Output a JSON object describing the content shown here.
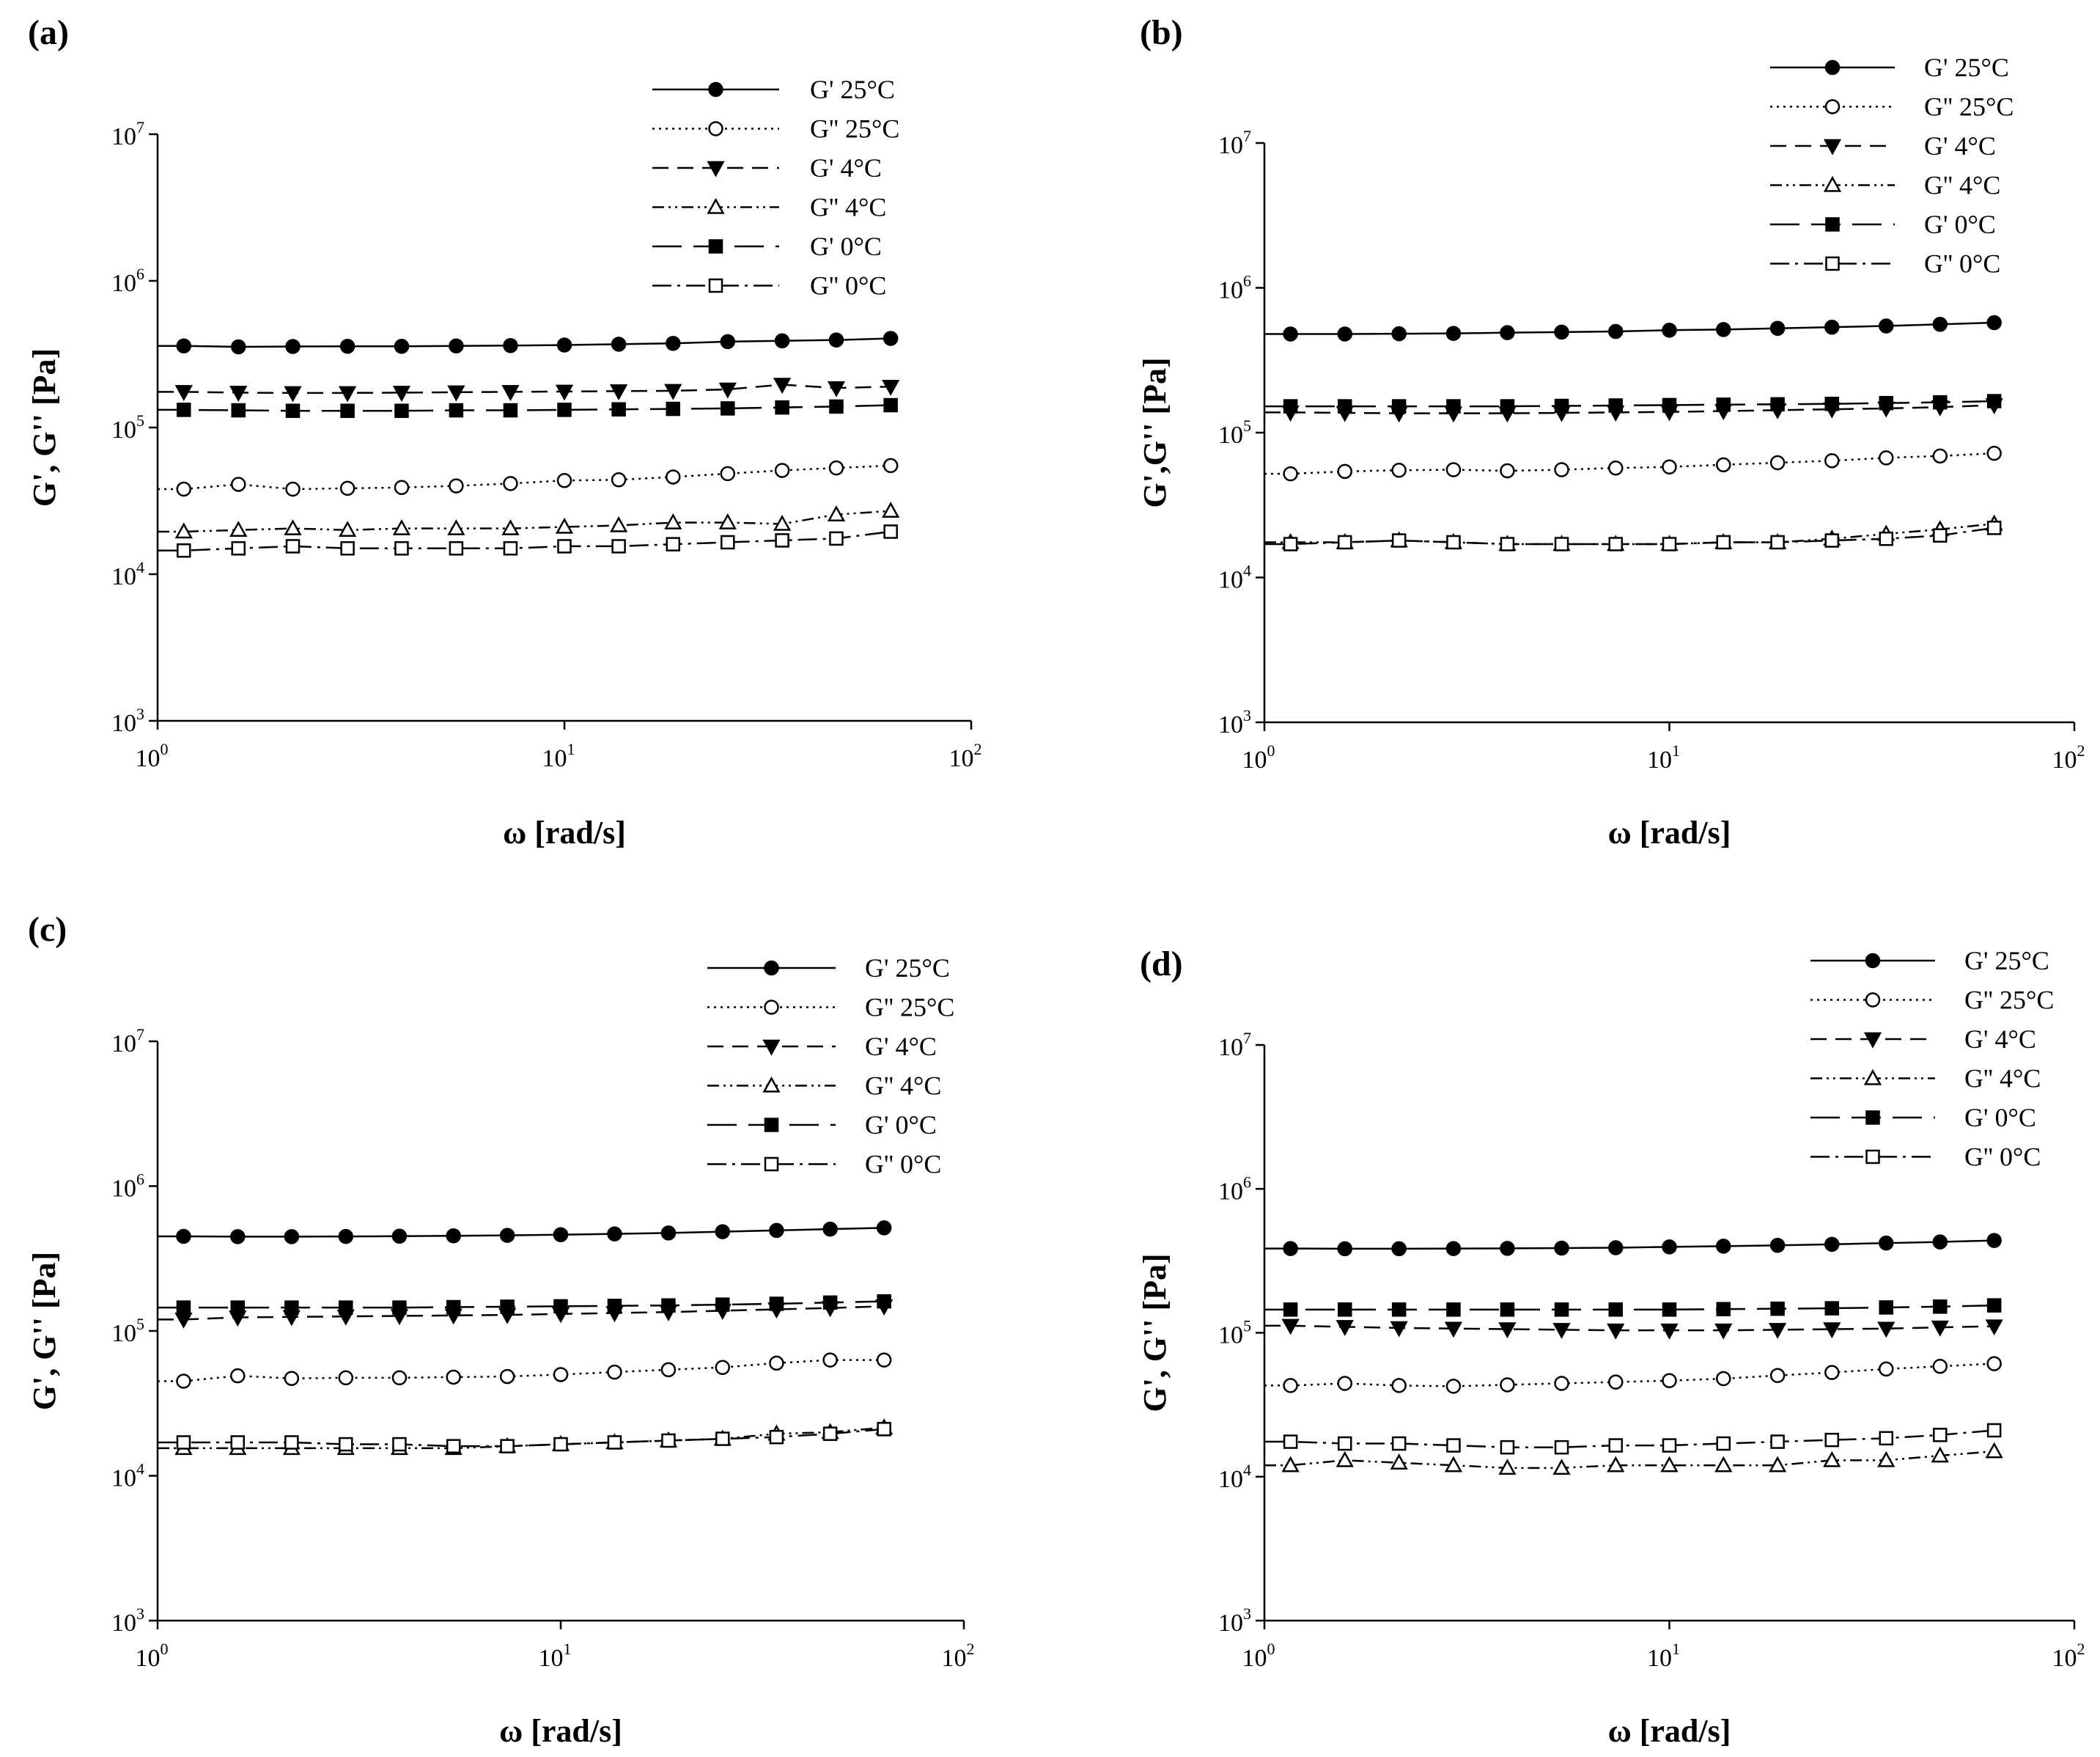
{
  "chart_data": [
    {
      "panel": "(a)",
      "type": "line",
      "xscale": "log",
      "yscale": "log",
      "xlim": [
        1,
        100
      ],
      "ylim": [
        1000,
        10000000
      ],
      "xlabel": "ω [rad/s]",
      "ylabel": "G', G'' [Pa]",
      "xticks": [
        {
          "base": "10",
          "exp": "0"
        },
        {
          "base": "10",
          "exp": "1"
        },
        {
          "base": "10",
          "exp": "2"
        }
      ],
      "yticks": [
        {
          "base": "10",
          "exp": "3"
        },
        {
          "base": "10",
          "exp": "4"
        },
        {
          "base": "10",
          "exp": "5"
        },
        {
          "base": "10",
          "exp": "6"
        },
        {
          "base": "10",
          "exp": "7"
        }
      ],
      "legend_position": "top-right",
      "x": [
        1.16,
        1.58,
        2.15,
        2.93,
        3.98,
        5.42,
        7.37,
        10.0,
        13.6,
        18.5,
        25.2,
        34.3,
        46.6,
        63.4
      ],
      "series": [
        {
          "name": "G' 25°C",
          "values": [
            360000,
            355000,
            357000,
            358000,
            358000,
            360000,
            362000,
            365000,
            370000,
            375000,
            385000,
            390000,
            395000,
            405000
          ]
        },
        {
          "name": "G'' 25°C",
          "values": [
            38000,
            41000,
            38000,
            38500,
            39000,
            40000,
            41500,
            43500,
            44000,
            46000,
            48500,
            51000,
            53000,
            55000
          ]
        },
        {
          "name": "G' 4°C",
          "values": [
            175000,
            173000,
            172000,
            172000,
            173000,
            174000,
            175000,
            176000,
            177000,
            178000,
            182000,
            196000,
            186000,
            190000
          ]
        },
        {
          "name": "G'' 4°C",
          "values": [
            19500,
            20000,
            20500,
            20000,
            20500,
            20500,
            20500,
            21000,
            21500,
            22500,
            22500,
            22000,
            25500,
            27000
          ]
        },
        {
          "name": "G' 0°C",
          "values": [
            132000,
            131000,
            130000,
            130000,
            130000,
            131000,
            131000,
            132000,
            133000,
            134000,
            135000,
            137000,
            139000,
            142000
          ]
        },
        {
          "name": "G'' 0°C",
          "values": [
            14500,
            15000,
            15500,
            15000,
            15000,
            15000,
            15000,
            15500,
            15500,
            16000,
            16500,
            17000,
            17500,
            19500
          ]
        }
      ]
    },
    {
      "panel": "(b)",
      "type": "line",
      "xscale": "log",
      "yscale": "log",
      "xlim": [
        1,
        100
      ],
      "ylim": [
        1000,
        10000000
      ],
      "xlabel": "ω [rad/s]",
      "ylabel": "G',G'' [Pa]",
      "xticks": [
        {
          "base": "10",
          "exp": "0"
        },
        {
          "base": "10",
          "exp": "1"
        },
        {
          "base": "10",
          "exp": "2"
        }
      ],
      "yticks": [
        {
          "base": "10",
          "exp": "3"
        },
        {
          "base": "10",
          "exp": "4"
        },
        {
          "base": "10",
          "exp": "5"
        },
        {
          "base": "10",
          "exp": "6"
        },
        {
          "base": "10",
          "exp": "7"
        }
      ],
      "legend_position": "top-right",
      "x": [
        1.16,
        1.58,
        2.15,
        2.93,
        3.98,
        5.42,
        7.37,
        10.0,
        13.6,
        18.5,
        25.2,
        34.3,
        46.6,
        63.4
      ],
      "series": [
        {
          "name": "G' 25°C",
          "values": [
            480000,
            480000,
            482000,
            485000,
            490000,
            495000,
            500000,
            510000,
            515000,
            525000,
            535000,
            545000,
            560000,
            575000
          ]
        },
        {
          "name": "G'' 25°C",
          "values": [
            52000,
            54000,
            55000,
            55500,
            54500,
            55500,
            57000,
            58000,
            60000,
            62000,
            64000,
            67000,
            69000,
            72000
          ]
        },
        {
          "name": "G' 4°C",
          "values": [
            138000,
            137000,
            136000,
            136000,
            136000,
            137000,
            138000,
            139000,
            141000,
            143000,
            145000,
            147000,
            150000,
            155000
          ]
        },
        {
          "name": "G'' 4°C",
          "values": [
            17500,
            17500,
            18000,
            17500,
            17000,
            17000,
            17000,
            17000,
            17500,
            17500,
            18500,
            20000,
            21500,
            23500
          ]
        },
        {
          "name": "G' 0°C",
          "values": [
            152000,
            152000,
            152000,
            152000,
            152000,
            153000,
            154000,
            155000,
            156000,
            157000,
            158000,
            160000,
            162000,
            165000
          ]
        },
        {
          "name": "G'' 0°C",
          "values": [
            17000,
            17500,
            18000,
            17500,
            17000,
            17000,
            17000,
            17000,
            17500,
            17500,
            18000,
            18500,
            19500,
            22000
          ]
        }
      ]
    },
    {
      "panel": "(c)",
      "type": "line",
      "xscale": "log",
      "yscale": "log",
      "xlim": [
        1,
        100
      ],
      "ylim": [
        1000,
        10000000
      ],
      "xlabel": "ω [rad/s]",
      "ylabel": "G', G'' [Pa]",
      "xticks": [
        {
          "base": "10",
          "exp": "0"
        },
        {
          "base": "10",
          "exp": "1"
        },
        {
          "base": "10",
          "exp": "2"
        }
      ],
      "yticks": [
        {
          "base": "10",
          "exp": "3"
        },
        {
          "base": "10",
          "exp": "4"
        },
        {
          "base": "10",
          "exp": "5"
        },
        {
          "base": "10",
          "exp": "6"
        },
        {
          "base": "10",
          "exp": "7"
        }
      ],
      "legend_position": "top-right",
      "x": [
        1.16,
        1.58,
        2.15,
        2.93,
        3.98,
        5.42,
        7.37,
        10.0,
        13.6,
        18.5,
        25.2,
        34.3,
        46.6,
        63.4
      ],
      "series": [
        {
          "name": "G' 25°C",
          "values": [
            450000,
            448000,
            448000,
            449000,
            451000,
            454000,
            457000,
            462000,
            468000,
            475000,
            485000,
            495000,
            505000,
            515000
          ]
        },
        {
          "name": "G'' 25°C",
          "values": [
            45000,
            49000,
            47000,
            47500,
            47500,
            48000,
            48500,
            50000,
            52000,
            54000,
            56000,
            60000,
            63000,
            63000
          ]
        },
        {
          "name": "G' 4°C",
          "values": [
            120000,
            124000,
            125000,
            126000,
            127000,
            128000,
            129000,
            131000,
            133000,
            135000,
            138000,
            141000,
            144000,
            148000
          ]
        },
        {
          "name": "G'' 4°C",
          "values": [
            15500,
            15500,
            15500,
            15500,
            15500,
            15500,
            16000,
            16500,
            17000,
            17500,
            18000,
            19500,
            20000,
            21500
          ]
        },
        {
          "name": "G' 0°C",
          "values": [
            145000,
            145000,
            145000,
            145000,
            145000,
            146000,
            147000,
            148000,
            149000,
            150000,
            152000,
            154000,
            157000,
            160000
          ]
        },
        {
          "name": "G'' 0°C",
          "values": [
            17000,
            17000,
            17000,
            16500,
            16500,
            16000,
            16000,
            16500,
            17000,
            17500,
            18000,
            18500,
            19500,
            21000
          ]
        }
      ]
    },
    {
      "panel": "(d)",
      "type": "line",
      "xscale": "log",
      "yscale": "log",
      "xlim": [
        1,
        100
      ],
      "ylim": [
        1000,
        10000000
      ],
      "xlabel": "ω [rad/s]",
      "ylabel": "G', G'' [Pa]",
      "xticks": [
        {
          "base": "10",
          "exp": "0"
        },
        {
          "base": "10",
          "exp": "1"
        },
        {
          "base": "10",
          "exp": "2"
        }
      ],
      "yticks": [
        {
          "base": "10",
          "exp": "3"
        },
        {
          "base": "10",
          "exp": "4"
        },
        {
          "base": "10",
          "exp": "5"
        },
        {
          "base": "10",
          "exp": "6"
        },
        {
          "base": "10",
          "exp": "7"
        }
      ],
      "legend_position": "top-right",
      "x": [
        1.16,
        1.58,
        2.15,
        2.93,
        3.98,
        5.42,
        7.37,
        10.0,
        13.6,
        18.5,
        25.2,
        34.3,
        46.6,
        63.4
      ],
      "series": [
        {
          "name": "G' 25°C",
          "values": [
            385000,
            384000,
            384000,
            385000,
            386000,
            388000,
            390000,
            395000,
            400000,
            405000,
            412000,
            420000,
            428000,
            438000
          ]
        },
        {
          "name": "G'' 25°C",
          "values": [
            43000,
            44500,
            43000,
            42500,
            43500,
            44500,
            45500,
            46500,
            48000,
            50500,
            53000,
            56000,
            58500,
            61000
          ]
        },
        {
          "name": "G' 4°C",
          "values": [
            112000,
            110000,
            108000,
            107000,
            106000,
            105000,
            104000,
            104000,
            104000,
            105000,
            106000,
            107000,
            109000,
            111000
          ]
        },
        {
          "name": "G'' 4°C",
          "values": [
            12000,
            13000,
            12500,
            12000,
            11500,
            11500,
            12000,
            12000,
            12000,
            12000,
            13000,
            13000,
            14000,
            15000
          ]
        },
        {
          "name": "G' 0°C",
          "values": [
            145000,
            145000,
            145000,
            145000,
            145000,
            145000,
            145000,
            145000,
            146000,
            147000,
            148000,
            150000,
            152000,
            155000
          ]
        },
        {
          "name": "G'' 0°C",
          "values": [
            17500,
            17000,
            17000,
            16500,
            16000,
            16000,
            16500,
            16500,
            17000,
            17500,
            18000,
            18500,
            19500,
            21000
          ]
        }
      ]
    }
  ],
  "series_styles": [
    {
      "marker": "circle",
      "filled": true,
      "dash": ""
    },
    {
      "marker": "circle",
      "filled": false,
      "dash": "3,6"
    },
    {
      "marker": "triangle-down",
      "filled": true,
      "dash": "22,12"
    },
    {
      "marker": "triangle-up",
      "filled": false,
      "dash": "16,6,3,6,3,6"
    },
    {
      "marker": "square",
      "filled": true,
      "dash": "40,16"
    },
    {
      "marker": "square",
      "filled": false,
      "dash": "26,8,4,8"
    }
  ],
  "colors": {
    "line": "#000000",
    "background": "#ffffff"
  }
}
